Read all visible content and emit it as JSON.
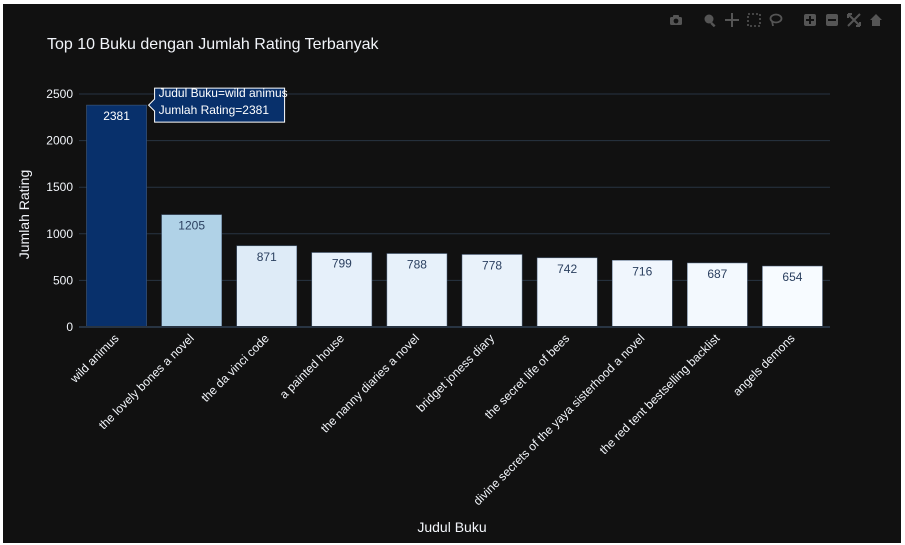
{
  "colors": {
    "background": "#111111",
    "grid": "#283442",
    "axis_text": "#f2f5fa",
    "title": "#f2f5fa",
    "bar_outline": "#506784",
    "hover_bg": "#08306b",
    "hover_text": "#ffffff",
    "colorscale": [
      "#f7fbff",
      "#deebf7",
      "#c6dbef",
      "#9ecae1",
      "#6baed6",
      "#4292c6",
      "#2171b5",
      "#08519c",
      "#08306b"
    ]
  },
  "modebar": {
    "buttons": [
      "camera-icon",
      "zoom-icon",
      "pan-icon",
      "box-select-icon",
      "lasso-icon",
      "zoom-in-icon",
      "zoom-out-icon",
      "autoscale-icon",
      "home-icon",
      "plotly-logo-icon"
    ]
  },
  "chart_data": {
    "type": "bar",
    "title": "Top 10 Buku dengan Jumlah Rating Terbanyak",
    "xlabel": "Judul Buku",
    "ylabel": "Jumlah Rating",
    "categories": [
      "wild animus",
      "the lovely bones a novel",
      "the da vinci code",
      "a painted house",
      "the nanny diaries a novel",
      "bridget joness diary",
      "the secret life of bees",
      "divine secrets of the yaya sisterhood a novel",
      "the red tent bestselling backlist",
      "angels  demons"
    ],
    "values": [
      2381,
      1205,
      871,
      799,
      788,
      778,
      742,
      716,
      687,
      654
    ],
    "value_labels": [
      "2381",
      "1205",
      "871",
      "799",
      "788",
      "778",
      "742",
      "716",
      "687",
      "654"
    ],
    "ylim": [
      0,
      2500
    ],
    "yticks": [
      0,
      500,
      1000,
      1500,
      2000,
      2500
    ],
    "ytick_labels": [
      "0",
      "500",
      "1000",
      "1500",
      "2000",
      "2500"
    ],
    "grid": true,
    "hover": {
      "line1": "Judul Buku=wild animus",
      "line2": "Jumlah Rating=2381"
    }
  }
}
